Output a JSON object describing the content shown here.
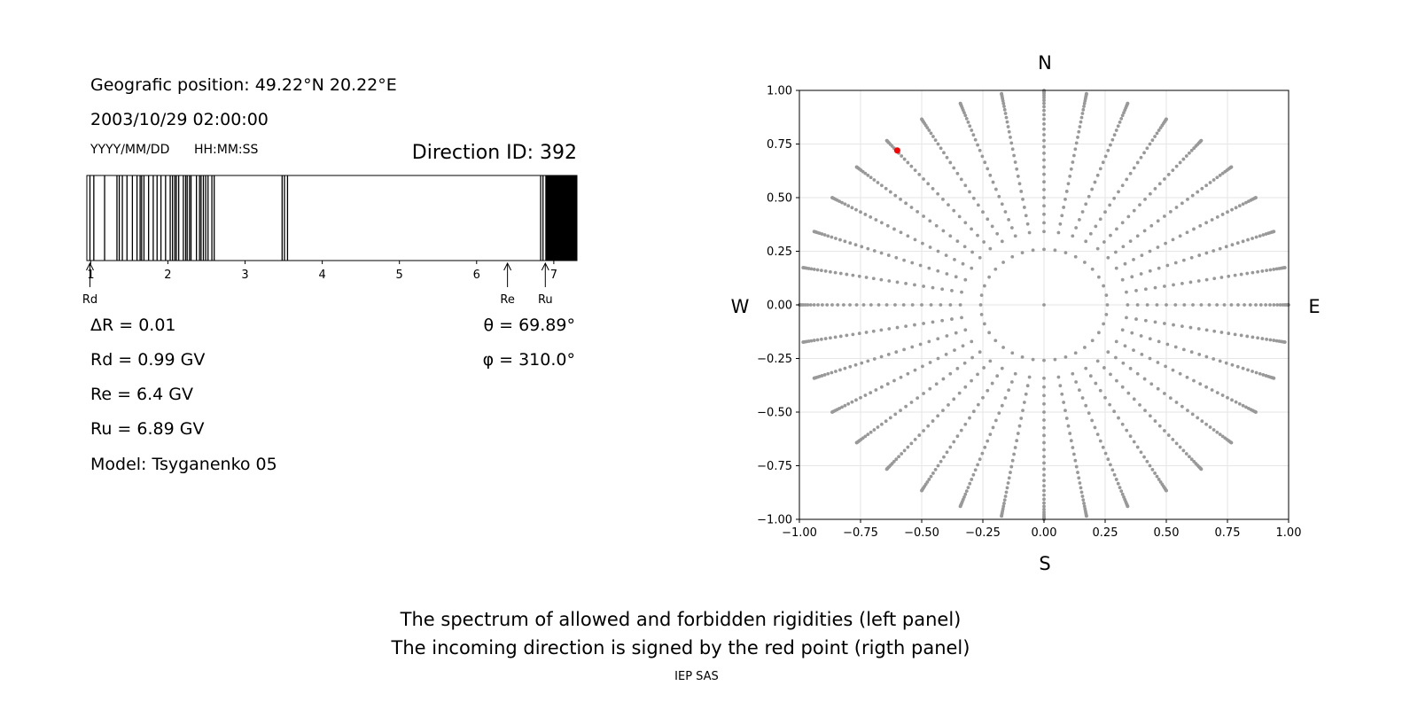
{
  "info": {
    "position": "Geografic position: 49.22°N 20.22°E",
    "datetime": "2003/10/29 02:00:00",
    "date_format": "YYYY/MM/DD",
    "time_format": "HH:MM:SS",
    "direction_id": "Direction ID: 392",
    "delta_r": "ΔR = 0.01",
    "rd": "Rd = 0.99 GV",
    "re": "Re = 6.4 GV",
    "ru": "Ru = 6.89 GV",
    "model": "Model: Tsyganenko 05",
    "theta": "θ = 69.89°",
    "phi": "φ = 310.0°"
  },
  "caption": {
    "line1": "The spectrum of allowed and forbidden rigidities (left panel)",
    "line2": "The incoming direction is signed by the red point (rigth panel)",
    "credit": "IEP SAS"
  },
  "colors": {
    "grid_points": "#999999",
    "highlight": "#ff0000",
    "gridlines": "#e6e6e6",
    "bars": "#000000"
  },
  "chart_data": [
    {
      "type": "bar",
      "name": "rigidity spectrum",
      "xlim": [
        0.95,
        7.3
      ],
      "xticks": [
        1,
        2,
        3,
        4,
        5,
        6,
        7
      ],
      "forbidden_lines": [
        0.99,
        1.04,
        1.18,
        1.34,
        1.37,
        1.41,
        1.47,
        1.54,
        1.6,
        1.64,
        1.66,
        1.69,
        1.75,
        1.81,
        1.86,
        1.91,
        1.97,
        2.03,
        2.06,
        2.09,
        2.11,
        2.14,
        2.2,
        2.23,
        2.25,
        2.28,
        2.3,
        2.37,
        2.41,
        2.43,
        2.46,
        2.49,
        2.52,
        2.57,
        2.6,
        3.48,
        3.51,
        3.55,
        6.83,
        6.86
      ],
      "forbidden_band": [
        6.89,
        7.3
      ],
      "markers": [
        {
          "label": "Rd",
          "value": 0.99
        },
        {
          "label": "Re",
          "value": 6.4
        },
        {
          "label": "Ru",
          "value": 6.89
        }
      ]
    },
    {
      "type": "scatter",
      "name": "asymptotic directions",
      "xlim": [
        -1.0,
        1.0
      ],
      "ylim": [
        -1.0,
        1.0
      ],
      "xticks": [
        "−1.00",
        "−0.75",
        "−0.50",
        "−0.25",
        "0.00",
        "0.25",
        "0.50",
        "0.75",
        "1.00"
      ],
      "yticks": [
        "1.00",
        "0.75",
        "0.50",
        "0.25",
        "0.00",
        "−0.25",
        "−0.50",
        "−0.75",
        "−1.00"
      ],
      "grid": true,
      "compass": {
        "top": "N",
        "bottom": "S",
        "left": "W",
        "right": "E"
      },
      "grid_pattern": {
        "rays": 36,
        "theta_step_deg": 2.5,
        "theta_max_deg": 90,
        "inner_ring_theta_deg": 15,
        "inner_ring_points": 36,
        "center": [
          0,
          0
        ]
      },
      "highlight": {
        "x": -0.6,
        "y": 0.72
      }
    }
  ]
}
